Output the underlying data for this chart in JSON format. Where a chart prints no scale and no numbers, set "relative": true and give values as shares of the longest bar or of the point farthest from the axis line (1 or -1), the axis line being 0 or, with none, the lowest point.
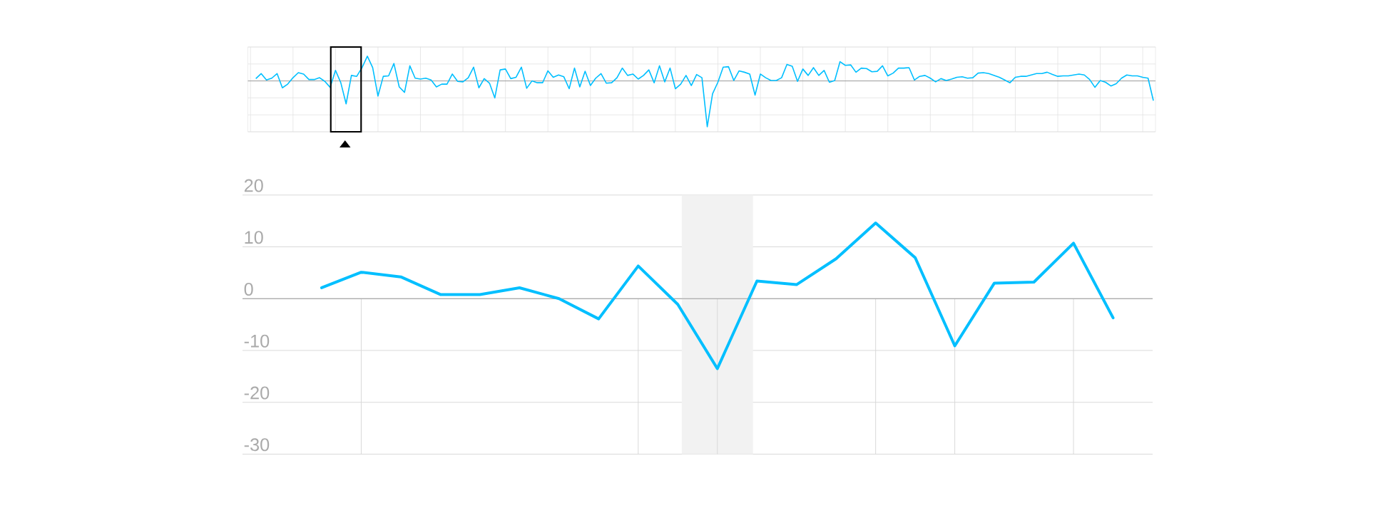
{
  "chart_data": [
    {
      "type": "line",
      "relative": true,
      "color": "#00bfff",
      "grid": true,
      "categories": [
        null,
        null,
        null,
        null,
        null,
        null,
        null,
        null,
        null,
        null,
        null,
        null,
        null,
        null,
        null,
        null,
        null,
        null,
        null,
        null,
        null,
        null,
        null,
        null,
        null,
        null,
        null,
        null,
        null,
        null,
        null,
        null,
        null,
        null,
        null,
        null,
        null,
        null,
        null,
        null,
        null,
        null,
        null,
        null,
        null,
        null,
        null,
        null,
        null,
        null,
        null,
        null,
        null,
        null,
        null,
        null,
        null,
        null,
        null,
        null,
        null,
        null,
        null,
        null,
        null,
        null,
        null,
        null,
        null,
        null,
        null,
        null,
        null,
        null,
        null,
        null,
        null,
        null,
        null,
        null,
        null,
        null,
        null,
        null,
        null,
        null,
        null,
        null,
        null,
        null,
        null,
        null,
        null,
        null,
        null,
        null,
        null,
        null,
        null,
        null,
        null,
        null,
        null,
        null,
        null,
        null,
        null,
        null,
        null,
        null,
        null,
        null,
        null,
        null,
        null,
        null,
        null,
        null,
        null,
        null,
        null,
        null,
        null,
        null,
        null,
        null,
        null,
        null,
        null,
        null,
        null,
        null,
        null,
        null,
        null,
        null,
        null,
        null,
        null,
        null,
        null,
        null,
        null,
        null,
        null,
        null,
        null,
        null,
        null,
        null,
        null,
        null,
        null,
        null,
        null,
        null,
        null,
        null,
        null,
        null,
        null,
        null,
        null,
        null,
        null,
        null,
        null,
        null,
        null,
        null
      ],
      "values": [
        0.05,
        0.16,
        0.02,
        0.06,
        0.16,
        -0.15,
        -0.07,
        0.07,
        0.18,
        0.15,
        0.03,
        0.03,
        0.07,
        -0.01,
        -0.14,
        0.23,
        -0.04,
        -0.5,
        0.12,
        0.1,
        0.29,
        0.54,
        0.29,
        -0.33,
        0.1,
        0.11,
        0.38,
        -0.13,
        -0.25,
        0.33,
        0.06,
        0.04,
        0.06,
        0.02,
        -0.13,
        -0.07,
        -0.07,
        0.15,
        -0.01,
        -0.02,
        0.07,
        0.3,
        -0.15,
        0.05,
        -0.05,
        -0.37,
        0.24,
        0.26,
        0.05,
        0.08,
        0.3,
        -0.16,
        0,
        -0.04,
        -0.04,
        0.22,
        0.08,
        0.13,
        0.09,
        -0.17,
        0.28,
        -0.13,
        0.21,
        -0.1,
        0.06,
        0.16,
        -0.05,
        -0.04,
        0.07,
        0.28,
        0.12,
        0.15,
        0.04,
        0.12,
        0.24,
        -0.04,
        0.33,
        -0.02,
        0.28,
        -0.17,
        -0.07,
        0.12,
        -0.1,
        0.14,
        0.07,
        -1,
        -0.28,
        -0.03,
        0.3,
        0.31,
        0.01,
        0.22,
        0.19,
        0.15,
        -0.31,
        0.15,
        0.07,
        0.01,
        0.01,
        0.07,
        0.36,
        0.32,
        -0.01,
        0.26,
        0.12,
        0.29,
        0.12,
        0.23,
        -0.03,
        0.01,
        0.42,
        0.34,
        0.35,
        0.19,
        0.28,
        0.27,
        0.2,
        0.21,
        0.33,
        0.11,
        0.17,
        0.28,
        0.28,
        0.29,
        0.02,
        0.1,
        0.12,
        0.06,
        -0.02,
        0.05,
        0.01,
        0.04,
        0.08,
        0.09,
        0.06,
        0.07,
        0.17,
        0.18,
        0.16,
        0.12,
        0.08,
        0.02,
        -0.04,
        0.08,
        0.1,
        0.1,
        0.13,
        0.16,
        0.16,
        0.19,
        0.14,
        0.1,
        0.11,
        0.11,
        0.13,
        0.15,
        0.13,
        0.03,
        -0.14,
        0.01,
        -0.03,
        -0.11,
        -0.06,
        0.06,
        0.13,
        0.11,
        0.11,
        0.08,
        0.06,
        -0.43
      ]
    },
    {
      "type": "line",
      "color": "#00bfff",
      "grid": true,
      "categories": [
        null,
        null,
        null,
        null,
        null,
        null,
        null,
        null,
        null,
        null,
        null,
        null,
        null,
        null,
        null,
        null,
        null,
        null,
        null,
        null,
        null
      ],
      "values": [
        2.1,
        5.1,
        4.2,
        0.8,
        0.8,
        2.1,
        0,
        -3.9,
        6.3,
        -1.1,
        -13.5,
        3.4,
        2.7,
        7.7,
        14.6,
        7.9,
        -9.1,
        3,
        3.2,
        10.7,
        -3.7
      ],
      "ylim": [
        -30,
        20
      ],
      "yticks": [
        20,
        10,
        0,
        -10,
        -20,
        -30
      ]
    }
  ]
}
